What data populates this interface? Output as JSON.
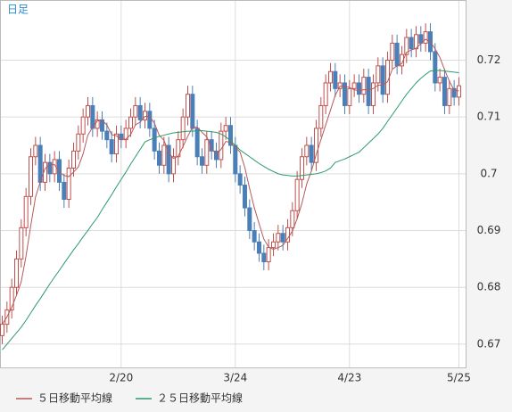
{
  "chart_data": {
    "type": "candlestick",
    "label": "日足",
    "categories": [
      null,
      null,
      null,
      null,
      null,
      null,
      null,
      null,
      null,
      null,
      null,
      null,
      null,
      null,
      null,
      null,
      null,
      null,
      null,
      null,
      null,
      null,
      null,
      null,
      null,
      "2/20",
      null,
      null,
      null,
      null,
      null,
      null,
      null,
      null,
      null,
      null,
      null,
      null,
      null,
      null,
      null,
      null,
      null,
      null,
      null,
      null,
      null,
      null,
      null,
      "3/24",
      null,
      null,
      null,
      null,
      null,
      null,
      null,
      null,
      null,
      null,
      null,
      null,
      null,
      null,
      null,
      null,
      null,
      null,
      null,
      null,
      null,
      null,
      null,
      "4/23",
      null,
      null,
      null,
      null,
      null,
      null,
      null,
      null,
      null,
      null,
      null,
      null,
      null,
      null,
      null,
      null,
      null,
      null,
      null,
      null,
      null,
      null,
      "5/25"
    ],
    "open": [
      0.6715,
      0.6735,
      0.676,
      0.68,
      0.685,
      0.6905,
      0.696,
      0.703,
      0.705,
      0.6985,
      0.702,
      0.7,
      0.7025,
      0.6985,
      0.6955,
      0.701,
      0.704,
      0.707,
      0.71,
      0.712,
      0.708,
      0.7095,
      0.7075,
      0.706,
      0.7035,
      0.707,
      0.706,
      0.708,
      0.71,
      0.712,
      0.7095,
      0.711,
      0.708,
      0.704,
      0.7015,
      0.705,
      0.7,
      0.703,
      0.706,
      0.71,
      0.714,
      0.708,
      0.703,
      0.7015,
      0.706,
      0.704,
      0.7025,
      0.7075,
      0.7085,
      0.705,
      0.7,
      0.698,
      0.694,
      0.69,
      0.688,
      0.686,
      0.6845,
      0.687,
      0.688,
      0.6895,
      0.688,
      0.6905,
      0.6935,
      0.699,
      0.703,
      0.705,
      0.702,
      0.708,
      0.712,
      0.716,
      0.718,
      0.715,
      0.716,
      0.712,
      0.715,
      0.716,
      0.714,
      0.717,
      0.712,
      0.716,
      0.719,
      0.714,
      0.72,
      0.723,
      0.719,
      0.721,
      0.724,
      0.722,
      0.7245,
      0.723,
      0.725,
      0.7215,
      0.716,
      0.717,
      0.712,
      0.715,
      0.7135
    ],
    "high": [
      0.675,
      0.6775,
      0.6815,
      0.6865,
      0.692,
      0.6975,
      0.7045,
      0.7065,
      0.7065,
      0.7035,
      0.7035,
      0.704,
      0.704,
      0.7,
      0.7025,
      0.7055,
      0.7085,
      0.7115,
      0.7135,
      0.7135,
      0.711,
      0.711,
      0.709,
      0.7075,
      0.7085,
      0.7085,
      0.7095,
      0.7115,
      0.7135,
      0.7135,
      0.7125,
      0.7125,
      0.7095,
      0.7055,
      0.7065,
      0.7065,
      0.7045,
      0.7075,
      0.7115,
      0.7155,
      0.7155,
      0.7095,
      0.7045,
      0.7075,
      0.7075,
      0.7055,
      0.709,
      0.71,
      0.71,
      0.7065,
      0.7015,
      0.6995,
      0.6955,
      0.6915,
      0.6895,
      0.6875,
      0.6885,
      0.6895,
      0.691,
      0.691,
      0.692,
      0.695,
      0.7005,
      0.7045,
      0.7065,
      0.7065,
      0.7095,
      0.7135,
      0.7175,
      0.7195,
      0.7195,
      0.7175,
      0.7175,
      0.7165,
      0.7175,
      0.7175,
      0.7185,
      0.7185,
      0.7175,
      0.7205,
      0.7205,
      0.7215,
      0.7245,
      0.7245,
      0.7225,
      0.7255,
      0.7255,
      0.726,
      0.726,
      0.7265,
      0.7265,
      0.723,
      0.7185,
      0.7185,
      0.7165,
      0.7165,
      0.717
    ],
    "low": [
      0.67,
      0.672,
      0.6745,
      0.6785,
      0.6835,
      0.689,
      0.6945,
      0.7015,
      0.697,
      0.697,
      0.6985,
      0.6985,
      0.697,
      0.694,
      0.694,
      0.6995,
      0.7025,
      0.7055,
      0.7085,
      0.7065,
      0.7065,
      0.706,
      0.7045,
      0.702,
      0.702,
      0.7045,
      0.7045,
      0.7065,
      0.7085,
      0.708,
      0.708,
      0.7065,
      0.7025,
      0.7,
      0.7,
      0.6985,
      0.6985,
      0.7015,
      0.7045,
      0.7085,
      0.7065,
      0.7015,
      0.7,
      0.7,
      0.7025,
      0.701,
      0.701,
      0.706,
      0.7035,
      0.6985,
      0.6965,
      0.6925,
      0.6885,
      0.6865,
      0.6845,
      0.683,
      0.683,
      0.6855,
      0.6865,
      0.6865,
      0.6865,
      0.689,
      0.692,
      0.6975,
      0.7015,
      0.7005,
      0.7005,
      0.7065,
      0.7105,
      0.7145,
      0.7135,
      0.7135,
      0.7105,
      0.7105,
      0.7135,
      0.7125,
      0.7125,
      0.7105,
      0.7105,
      0.7145,
      0.7125,
      0.7125,
      0.7185,
      0.7175,
      0.7175,
      0.7195,
      0.7205,
      0.7205,
      0.7215,
      0.7215,
      0.72,
      0.7145,
      0.7145,
      0.7105,
      0.7105,
      0.712,
      0.712
    ],
    "close": [
      0.6735,
      0.676,
      0.68,
      0.685,
      0.6905,
      0.696,
      0.703,
      0.705,
      0.6985,
      0.702,
      0.7,
      0.7025,
      0.6985,
      0.6955,
      0.701,
      0.704,
      0.707,
      0.71,
      0.712,
      0.708,
      0.7095,
      0.7075,
      0.706,
      0.7035,
      0.707,
      0.706,
      0.708,
      0.71,
      0.712,
      0.7095,
      0.711,
      0.708,
      0.704,
      0.7015,
      0.705,
      0.7,
      0.703,
      0.706,
      0.71,
      0.714,
      0.708,
      0.703,
      0.7015,
      0.706,
      0.704,
      0.7025,
      0.7075,
      0.7085,
      0.705,
      0.7,
      0.698,
      0.694,
      0.69,
      0.688,
      0.686,
      0.6845,
      0.687,
      0.688,
      0.6895,
      0.688,
      0.6905,
      0.6935,
      0.699,
      0.703,
      0.705,
      0.702,
      0.708,
      0.712,
      0.716,
      0.718,
      0.715,
      0.716,
      0.712,
      0.715,
      0.716,
      0.714,
      0.717,
      0.712,
      0.716,
      0.719,
      0.714,
      0.72,
      0.723,
      0.719,
      0.721,
      0.724,
      0.722,
      0.7245,
      0.723,
      0.725,
      0.7215,
      0.716,
      0.717,
      0.712,
      0.715,
      0.7135,
      0.7155
    ],
    "up_color": "#c0504d",
    "down_color": "#4a7fb8",
    "moving_averages": [
      {
        "name": "５日移動平均線",
        "color": "#b55a5a",
        "values": [
          0.6735,
          0.6748,
          0.6765,
          0.6786,
          0.681,
          0.6855,
          0.6909,
          0.6959,
          0.6986,
          0.7009,
          0.7017,
          0.7016,
          0.7003,
          0.6997,
          0.6995,
          0.7003,
          0.7012,
          0.7035,
          0.7068,
          0.7082,
          0.7093,
          0.7094,
          0.7086,
          0.7069,
          0.7067,
          0.706,
          0.7061,
          0.7069,
          0.7086,
          0.7091,
          0.7101,
          0.7101,
          0.7089,
          0.7068,
          0.7059,
          0.7037,
          0.7027,
          0.7031,
          0.7048,
          0.7066,
          0.7082,
          0.7082,
          0.7073,
          0.7065,
          0.7045,
          0.7034,
          0.7043,
          0.7057,
          0.7055,
          0.7047,
          0.7038,
          0.7011,
          0.6974,
          0.694,
          0.6912,
          0.6885,
          0.6871,
          0.6867,
          0.687,
          0.6874,
          0.6886,
          0.6899,
          0.6921,
          0.6948,
          0.6982,
          0.7005,
          0.7034,
          0.706,
          0.7086,
          0.7112,
          0.7138,
          0.7154,
          0.7154,
          0.7152,
          0.7148,
          0.7146,
          0.7148,
          0.7148,
          0.715,
          0.7156,
          0.7156,
          0.7162,
          0.7184,
          0.719,
          0.7194,
          0.7214,
          0.7218,
          0.7221,
          0.7229,
          0.7237,
          0.7232,
          0.722,
          0.7205,
          0.7183,
          0.7163,
          0.7147,
          0.7146
        ]
      },
      {
        "name": "２５日移動平均線",
        "color": "#2e9a6c",
        "values": [
          0.669,
          0.67,
          0.671,
          0.672,
          0.673,
          0.6742,
          0.6755,
          0.6768,
          0.678,
          0.6793,
          0.6806,
          0.6818,
          0.683,
          0.6842,
          0.6854,
          0.6866,
          0.6877,
          0.6889,
          0.69,
          0.6912,
          0.6923,
          0.6937,
          0.695,
          0.6963,
          0.6977,
          0.699,
          0.7003,
          0.7017,
          0.703,
          0.7043,
          0.7056,
          0.706,
          0.7063,
          0.7066,
          0.7068,
          0.707,
          0.7072,
          0.7073,
          0.7074,
          0.7075,
          0.7075,
          0.7076,
          0.7076,
          0.7075,
          0.7074,
          0.7073,
          0.707,
          0.7065,
          0.7058,
          0.705,
          0.7042,
          0.7036,
          0.703,
          0.7024,
          0.7018,
          0.7013,
          0.7008,
          0.7004,
          0.7,
          0.6998,
          0.6997,
          0.6996,
          0.6996,
          0.6997,
          0.6998,
          0.6999,
          0.7,
          0.7002,
          0.7005,
          0.701,
          0.702,
          0.7023,
          0.7026,
          0.703,
          0.7034,
          0.7038,
          0.7046,
          0.7054,
          0.7062,
          0.707,
          0.708,
          0.7092,
          0.7104,
          0.7116,
          0.7128,
          0.714,
          0.715,
          0.716,
          0.7168,
          0.7175,
          0.7181,
          0.7182,
          0.7182,
          0.7181,
          0.718,
          0.7179,
          0.7178
        ]
      }
    ],
    "ylim": [
      0.6659,
      0.7306
    ],
    "yticks": [
      0.67,
      0.68,
      0.69,
      0.7,
      0.71,
      0.72
    ],
    "grid": true
  }
}
